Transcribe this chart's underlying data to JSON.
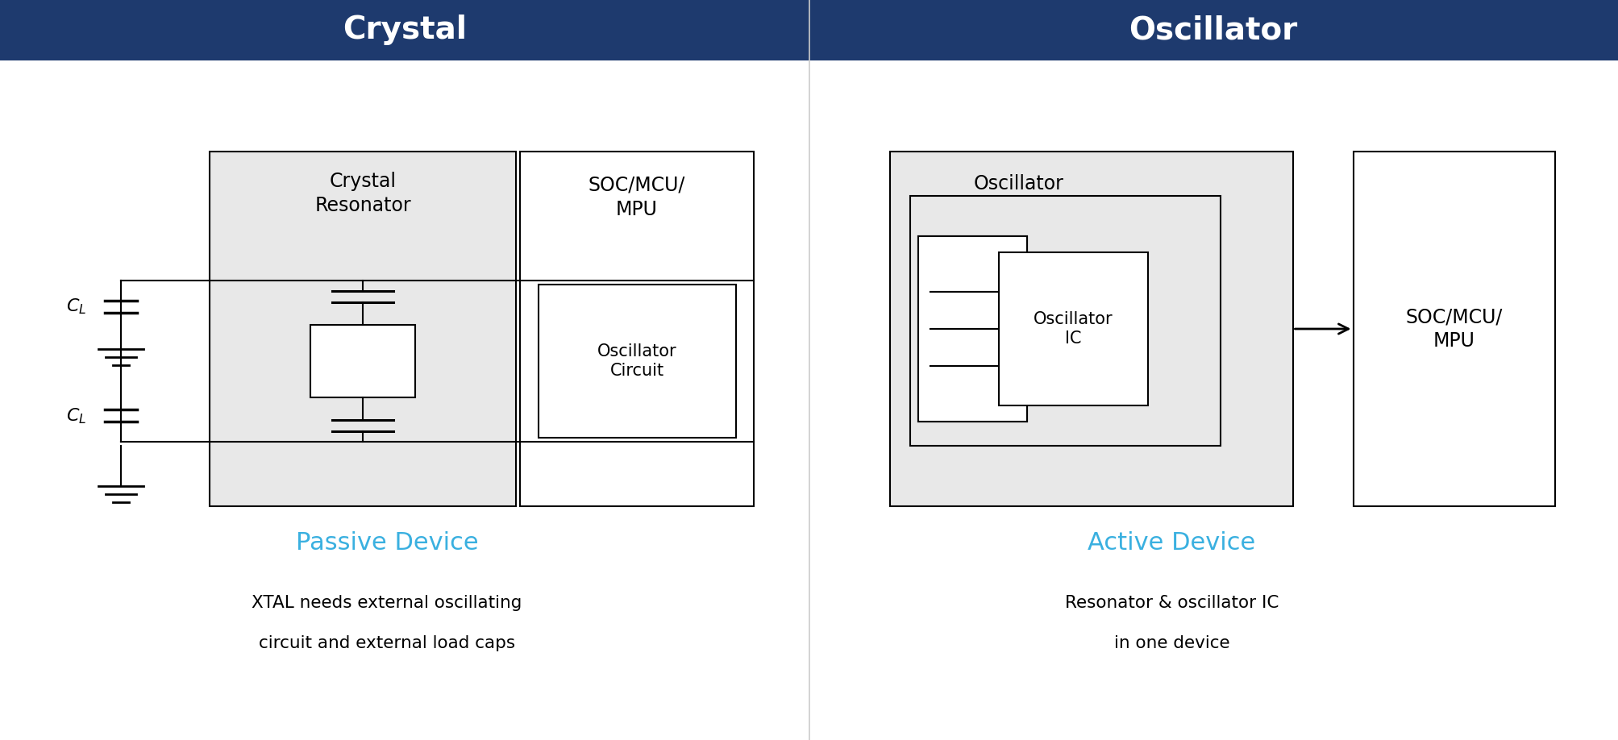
{
  "header_color": "#1e3a6e",
  "header_text_color": "#ffffff",
  "background_color": "#ffffff",
  "box_edge_color": "#000000",
  "light_gray_fill": "#e8e8e8",
  "white_fill": "#ffffff",
  "cyan_color": "#3ab0e0",
  "black_color": "#000000",
  "divider_color": "#cccccc",
  "left_title": "Crystal",
  "right_title": "Oscillator",
  "left_subtitle": "Passive Device",
  "right_subtitle": "Active Device",
  "left_desc1": "XTAL needs external oscillating",
  "left_desc2": "circuit and external load caps",
  "right_desc1": "Resonator & oscillator IC",
  "right_desc2": "in one device",
  "crystal_resonator_label": "Crystal\nResonator",
  "soc_mcu_mpu_label": "SOC/MCU/\nMPU",
  "oscillator_circuit_label": "Oscillator\nCircuit",
  "oscillator_label": "Oscillator",
  "oscillator_ic_label": "Oscillator\nIC",
  "fig_width": 20.07,
  "fig_height": 9.18
}
